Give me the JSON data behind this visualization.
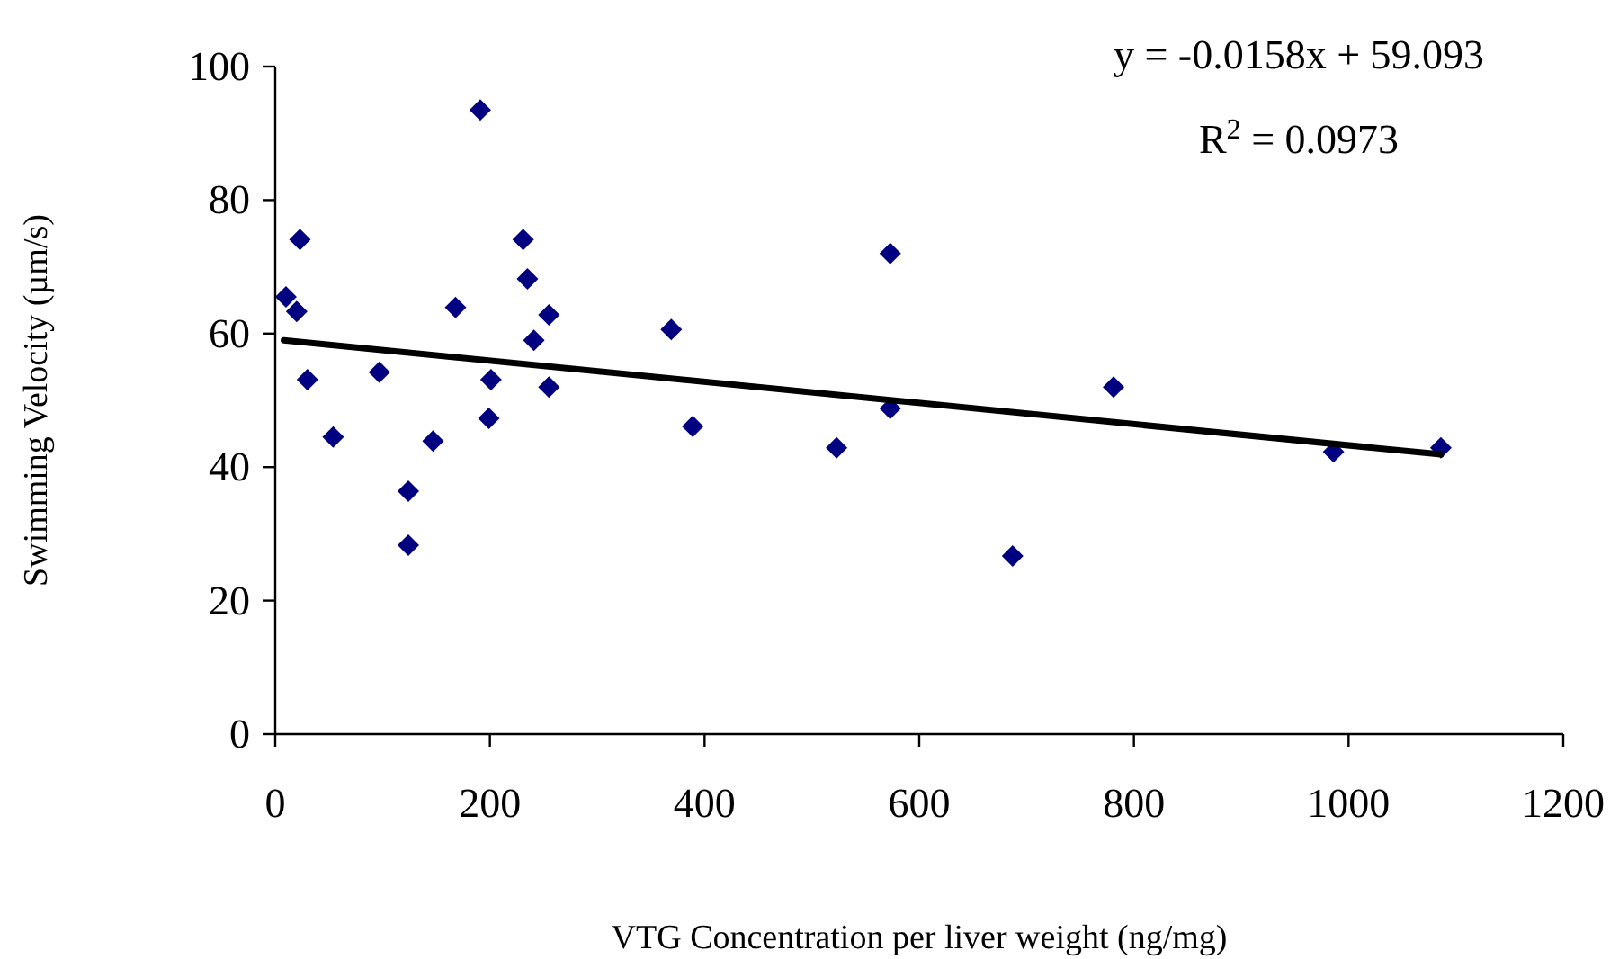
{
  "chart_data": {
    "type": "scatter",
    "xlabel": "VTG Concentration per liver weight (ng/mg)",
    "ylabel": "Swimming Velocity (µm/s)",
    "xlim": [
      0,
      1200
    ],
    "xticks": [
      0,
      200,
      400,
      600,
      800,
      1000,
      1200
    ],
    "ylim": [
      0,
      100
    ],
    "yticks": [
      0,
      20,
      40,
      60,
      80,
      100
    ],
    "grid": false,
    "marker": "diamond",
    "annotations": [
      "y = -0.0158x + 59.093",
      "R$^{2}$ = 0.0973"
    ],
    "series": [
      {
        "color": "#000080",
        "x": [
          10,
          20,
          23,
          30,
          54,
          97,
          124,
          124,
          147,
          168,
          191,
          201,
          199,
          231,
          235,
          241,
          255,
          255,
          369,
          389,
          573,
          523,
          573,
          687,
          781,
          986,
          1086
        ],
        "values": [
          65.5,
          63.3,
          74.1,
          53.1,
          44.5,
          54.2,
          28.3,
          36.4,
          43.9,
          63.9,
          93.5,
          53.1,
          47.3,
          74.1,
          68.2,
          59.0,
          62.8,
          52.0,
          60.6,
          46.1,
          72.0,
          42.9,
          48.8,
          26.7,
          52.0,
          42.3,
          42.9
        ]
      },
      {
        "type": "line",
        "color": "#000000",
        "marker": "none",
        "x": [
          8,
          1086
        ],
        "values": [
          59.0,
          41.9
        ]
      }
    ]
  }
}
